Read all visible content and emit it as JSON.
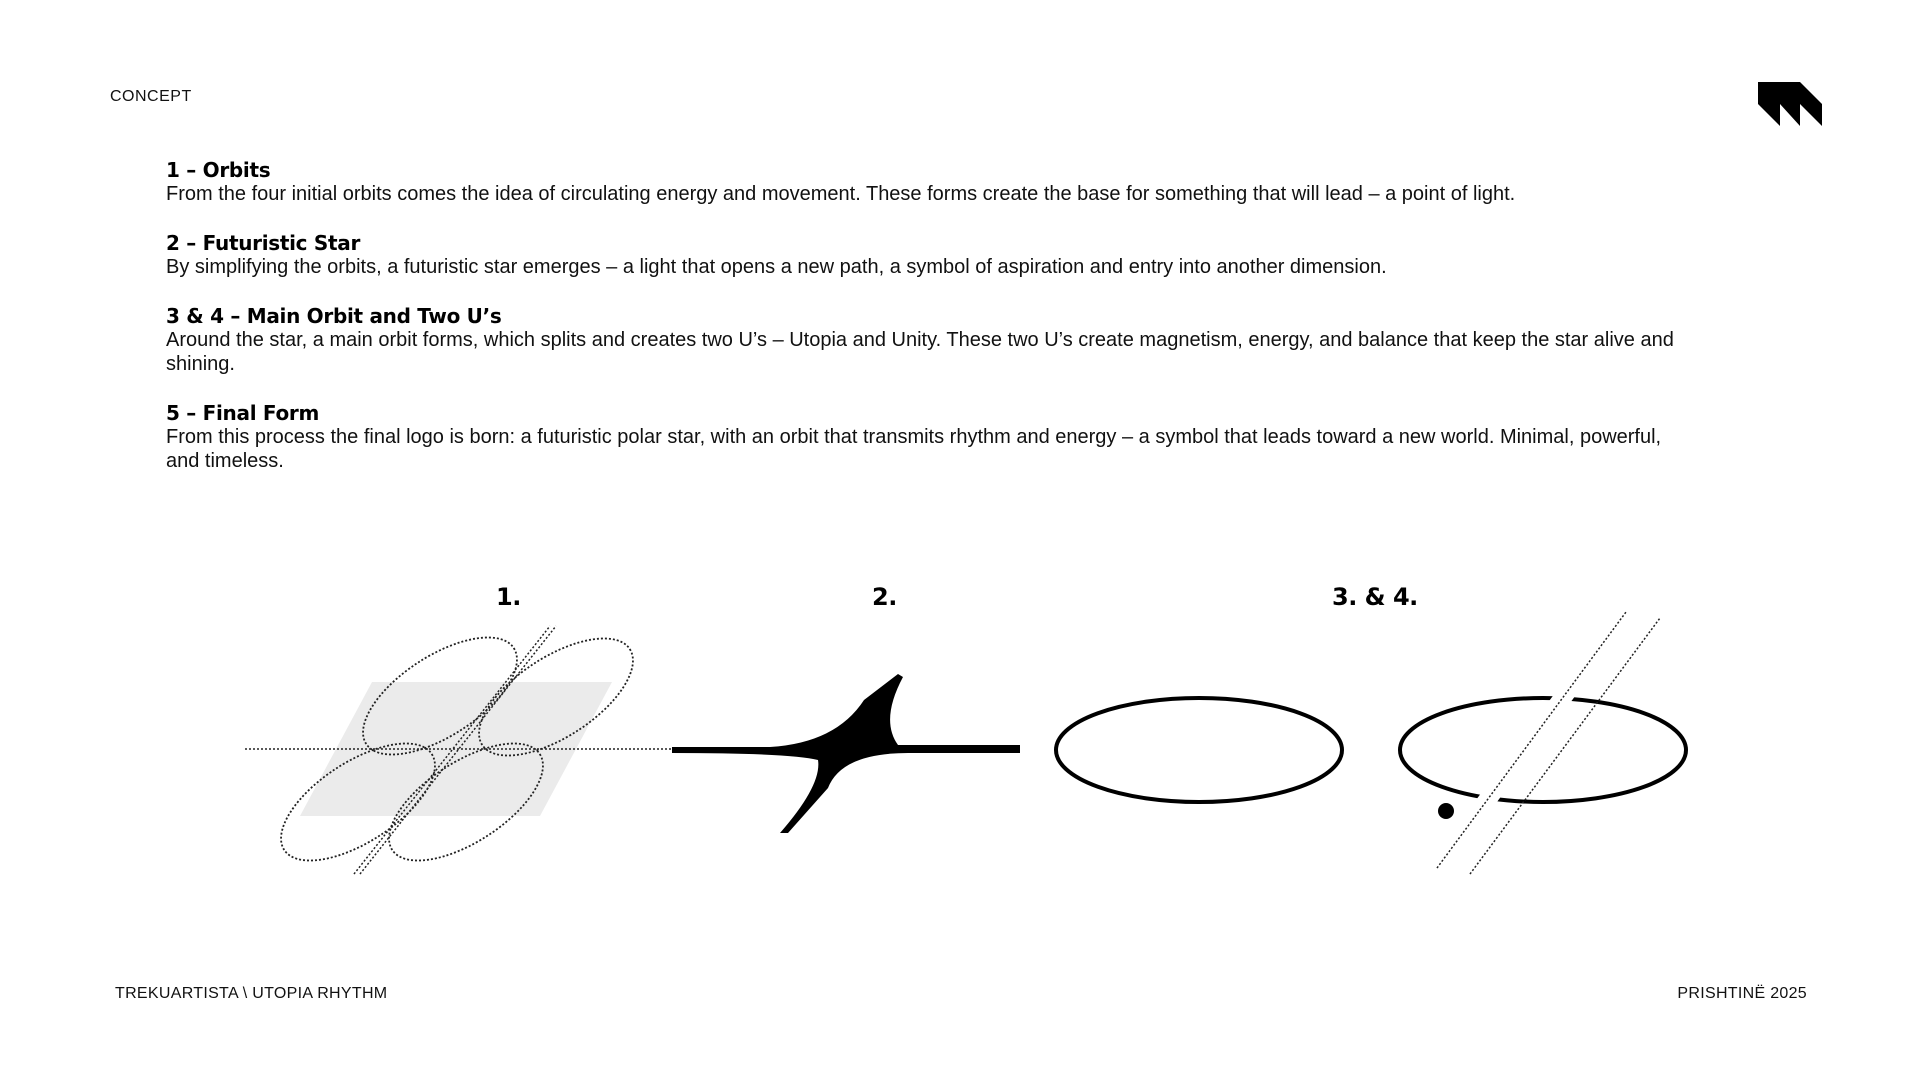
{
  "header": {
    "label": "CONCEPT"
  },
  "logo": {
    "icon": "trekuartista-logo-icon"
  },
  "sections": [
    {
      "heading": "1 – Orbits",
      "body": "From the four initial orbits comes the idea of circulating energy and movement. These forms create the base for something that will lead – a point of light."
    },
    {
      "heading": "2 – Futuristic Star",
      "body": "By simplifying the orbits, a futuristic star emerges – a light that opens a new path, a symbol of aspiration and entry into another dimension."
    },
    {
      "heading": "3 & 4 – Main Orbit and Two U’s",
      "body": "Around the star, a main orbit forms, which splits and creates two U’s – Utopia and Unity. These two U’s create magnetism, energy, and balance that keep the star alive and shining."
    },
    {
      "heading": "5 – Final Form",
      "body": "From this process the final logo is born: a futuristic polar star, with an orbit that transmits rhythm and energy – a symbol that leads toward a new world. Minimal, powerful, and timeless."
    }
  ],
  "figures": {
    "label_1": "1.",
    "label_2": "2.",
    "label_3": "3. & 4."
  },
  "footer": {
    "left": "TREKUARTISTA \\ UTOPIA RHYTHM",
    "right": "PRISHTINË 2025"
  },
  "colors": {
    "ink": "#000000",
    "text": "#111111",
    "fill_gray": "#ebebeb",
    "background": "#ffffff"
  }
}
